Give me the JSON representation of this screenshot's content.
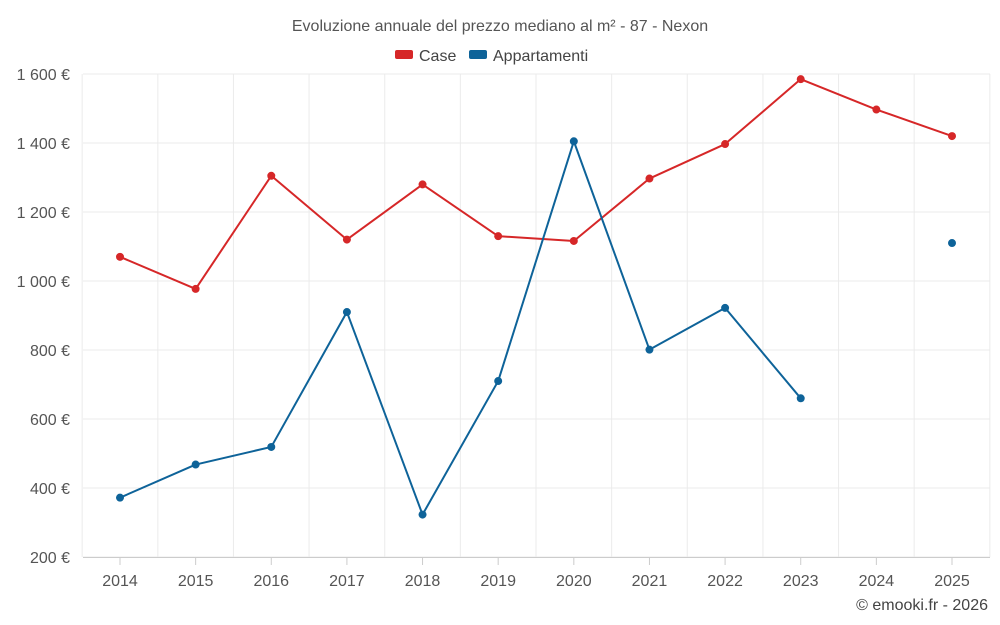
{
  "chart_data": {
    "type": "line",
    "title": "Evoluzione annuale del prezzo mediano al m² - 87 - Nexon",
    "categories": [
      "2014",
      "2015",
      "2016",
      "2017",
      "2018",
      "2019",
      "2020",
      "2021",
      "2022",
      "2023",
      "2024",
      "2025"
    ],
    "y_ticks": [
      200,
      400,
      600,
      800,
      1000,
      1200,
      1400,
      1600
    ],
    "y_tick_labels": [
      "200 €",
      "400 €",
      "600 €",
      "800 €",
      "1 000 €",
      "1 200 €",
      "1 400 €",
      "1 600 €"
    ],
    "ylim": [
      200,
      1600
    ],
    "xlabel": "",
    "ylabel": "",
    "legend_position": "top-center",
    "series": [
      {
        "name": "Case",
        "color": "#d62728",
        "values": [
          1070,
          977,
          1305,
          1120,
          1280,
          1130,
          1116,
          1297,
          1397,
          1585,
          1497,
          1420
        ]
      },
      {
        "name": "Appartamenti",
        "color": "#0e6399",
        "values": [
          372,
          468,
          519,
          910,
          323,
          710,
          1405,
          801,
          922,
          660,
          null,
          1110
        ]
      }
    ],
    "credit": "© emooki.fr - 2026"
  }
}
